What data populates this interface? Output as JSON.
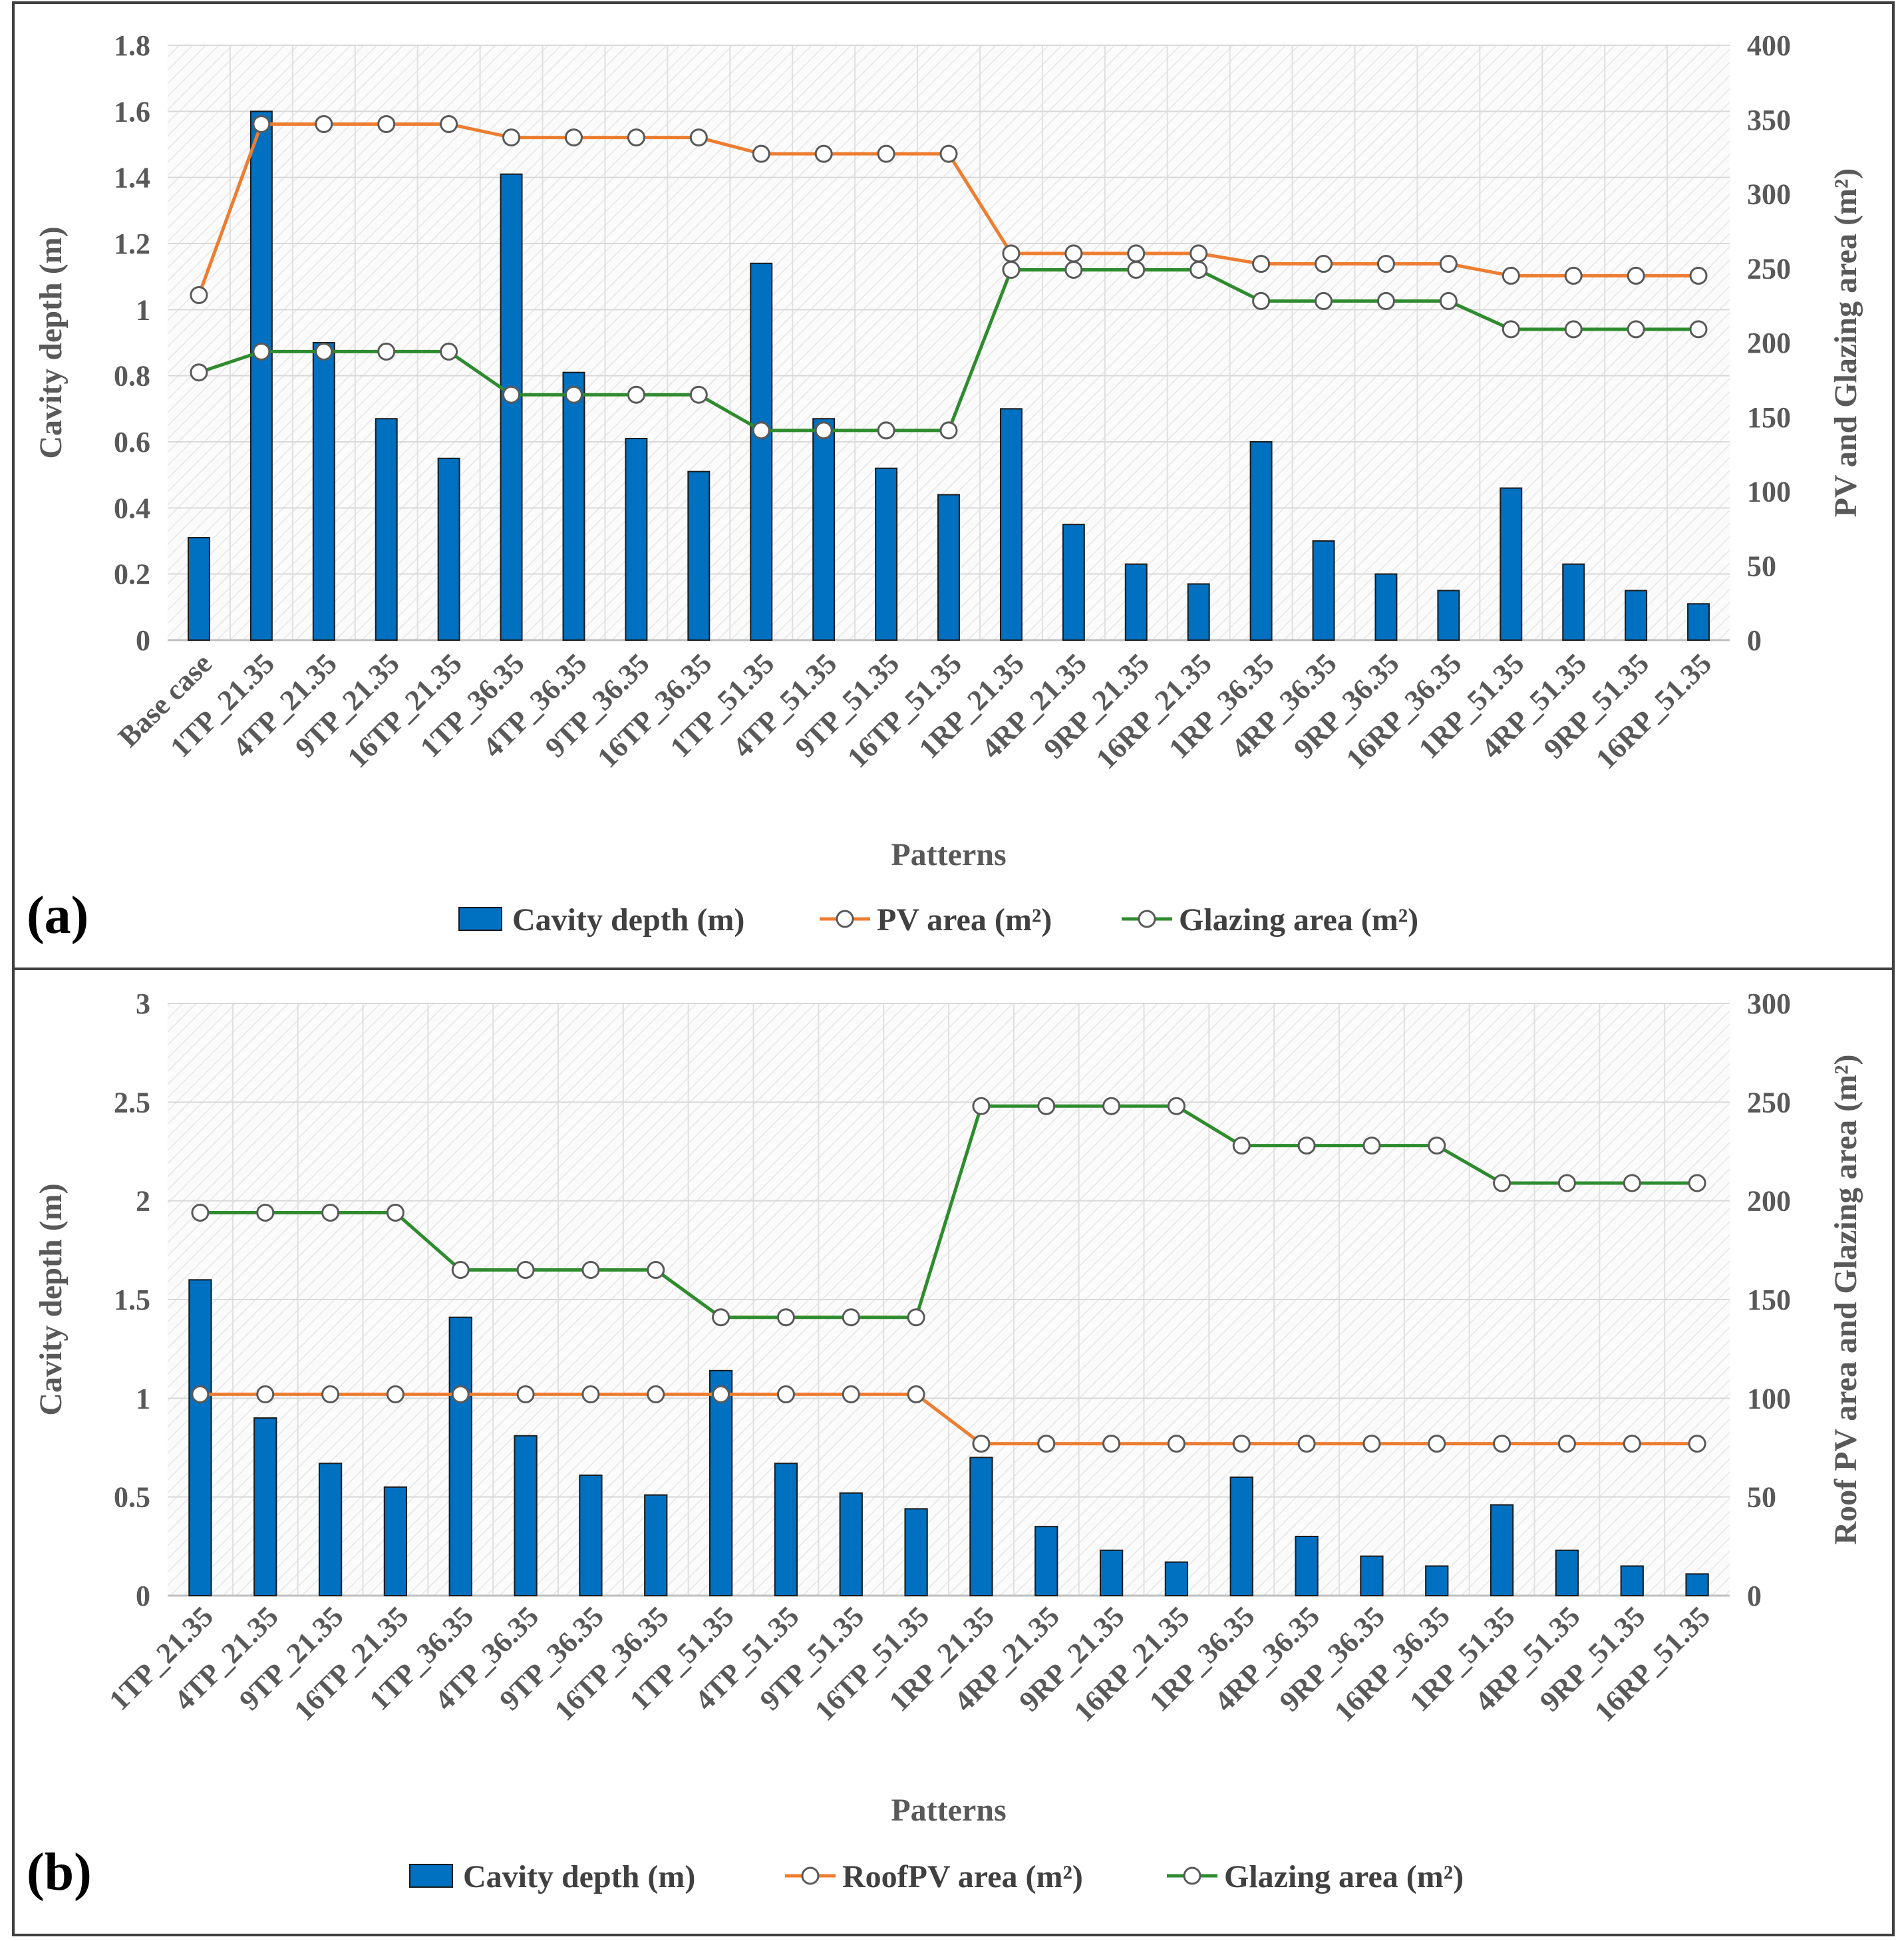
{
  "chart_data": [
    {
      "type": "bar+line",
      "panel_label": "(a)",
      "title": "",
      "xlabel": "Patterns",
      "ylabel": "Cavity depth (m)",
      "y2label": "PV and Glazing area (m²)",
      "ylim": [
        0,
        1.8
      ],
      "y2lim": [
        0,
        400
      ],
      "yticks": [
        "0",
        "0.2",
        "0.4",
        "0.6",
        "0.8",
        "1",
        "1.2",
        "1.4",
        "1.6",
        "1.8"
      ],
      "y2ticks": [
        "0",
        "50",
        "100",
        "150",
        "200",
        "250",
        "300",
        "350",
        "400"
      ],
      "grid": true,
      "legend_position": "bottom",
      "categories": [
        "Base case",
        "1TP_21.35",
        "4TP_21.35",
        "9TP_21.35",
        "16TP_21.35",
        "1TP_36.35",
        "4TP_36.35",
        "9TP_36.35",
        "16TP_36.35",
        "1TP_51.35",
        "4TP_51.35",
        "9TP_51.35",
        "16TP_51.35",
        "1RP_21.35",
        "4RP_21.35",
        "9RP_21.35",
        "16RP_21.35",
        "1RP_36.35",
        "4RP_36.35",
        "9RP_36.35",
        "16RP_36.35",
        "1RP_51.35",
        "4RP_51.35",
        "9RP_51.35",
        "16RP_51.35"
      ],
      "series": [
        {
          "name": "Cavity depth (m)",
          "type": "bar",
          "axis": "left",
          "color": "#0070C0",
          "values": [
            0.31,
            1.6,
            0.9,
            0.67,
            0.55,
            1.41,
            0.81,
            0.61,
            0.51,
            1.14,
            0.67,
            0.52,
            0.44,
            0.7,
            0.35,
            0.23,
            0.17,
            0.6,
            0.3,
            0.2,
            0.15,
            0.46,
            0.23,
            0.15,
            0.11
          ]
        },
        {
          "name": "PV area (m²)",
          "type": "line",
          "axis": "right",
          "color": "#ED7D31",
          "values": [
            232,
            347,
            347,
            347,
            347,
            338,
            338,
            338,
            338,
            327,
            327,
            327,
            327,
            260,
            260,
            260,
            260,
            253,
            253,
            253,
            253,
            245,
            245,
            245,
            245
          ]
        },
        {
          "name": "Glazing area (m²)",
          "type": "line",
          "axis": "right",
          "color": "#2E8B2E",
          "values": [
            180,
            194,
            194,
            194,
            194,
            165,
            165,
            165,
            165,
            141,
            141,
            141,
            141,
            249,
            249,
            249,
            249,
            228,
            228,
            228,
            228,
            209,
            209,
            209,
            209
          ]
        }
      ]
    },
    {
      "type": "bar+line",
      "panel_label": "(b)",
      "title": "",
      "xlabel": "Patterns",
      "ylabel": "Cavity depth (m)",
      "y2label": "Roof PV area and Glazing area (m²)",
      "ylim": [
        0,
        3
      ],
      "y2lim": [
        0,
        300
      ],
      "yticks": [
        "0",
        "0.5",
        "1",
        "1.5",
        "2",
        "2.5",
        "3"
      ],
      "y2ticks": [
        "0",
        "50",
        "100",
        "150",
        "200",
        "250",
        "300"
      ],
      "grid": true,
      "legend_position": "bottom",
      "categories": [
        "1TP_21.35",
        "4TP_21.35",
        "9TP_21.35",
        "16TP_21.35",
        "1TP_36.35",
        "4TP_36.35",
        "9TP_36.35",
        "16TP_36.35",
        "1TP_51.35",
        "4TP_51.35",
        "9TP_51.35",
        "16TP_51.35",
        "1RP_21.35",
        "4RP_21.35",
        "9RP_21.35",
        "16RP_21.35",
        "1RP_36.35",
        "4RP_36.35",
        "9RP_36.35",
        "16RP_36.35",
        "1RP_51.35",
        "4RP_51.35",
        "9RP_51.35",
        "16RP_51.35"
      ],
      "series": [
        {
          "name": "Cavity depth (m)",
          "type": "bar",
          "axis": "left",
          "color": "#0070C0",
          "values": [
            1.6,
            0.9,
            0.67,
            0.55,
            1.41,
            0.81,
            0.61,
            0.51,
            1.14,
            0.67,
            0.52,
            0.44,
            0.7,
            0.35,
            0.23,
            0.17,
            0.6,
            0.3,
            0.2,
            0.15,
            0.46,
            0.23,
            0.15,
            0.11
          ]
        },
        {
          "name": "RoofPV area (m²)",
          "type": "line",
          "axis": "right",
          "color": "#ED7D31",
          "values": [
            102,
            102,
            102,
            102,
            102,
            102,
            102,
            102,
            102,
            102,
            102,
            102,
            77,
            77,
            77,
            77,
            77,
            77,
            77,
            77,
            77,
            77,
            77,
            77
          ]
        },
        {
          "name": "Glazing area (m²)",
          "type": "line",
          "axis": "right",
          "color": "#2E8B2E",
          "values": [
            194,
            194,
            194,
            194,
            165,
            165,
            165,
            165,
            141,
            141,
            141,
            141,
            248,
            248,
            248,
            248,
            228,
            228,
            228,
            228,
            209,
            209,
            209,
            209
          ]
        }
      ]
    }
  ]
}
